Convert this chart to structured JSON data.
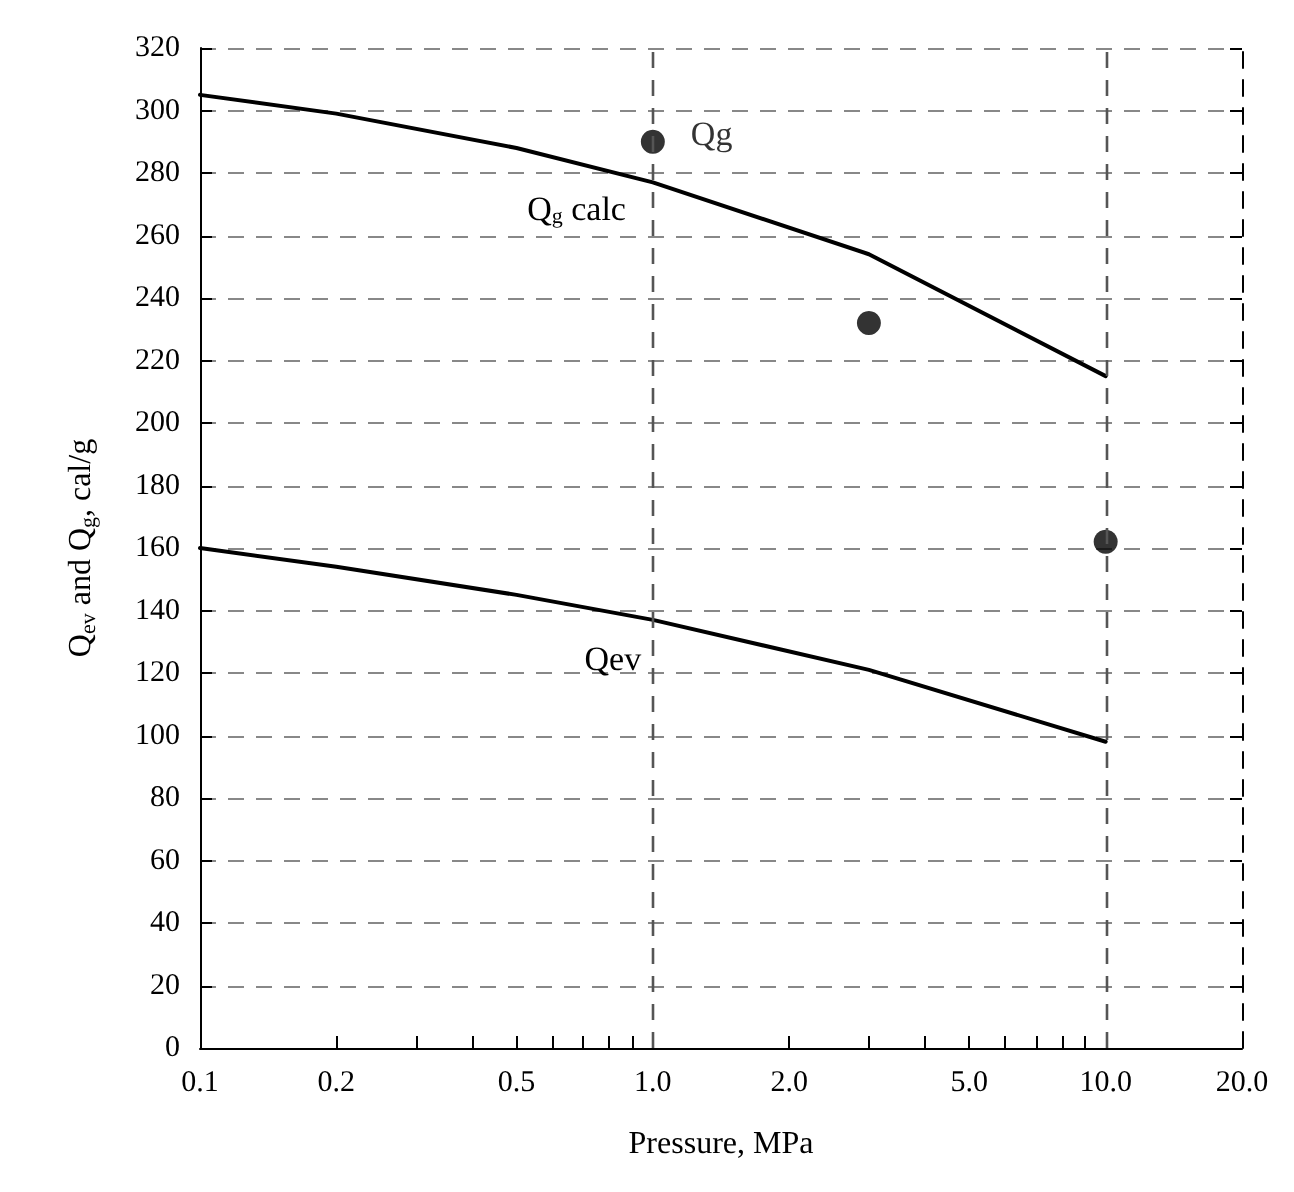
{
  "chart_data": {
    "type": "line",
    "xlabel": "Pressure, MPa",
    "ylabel": "Q$_{ev}$ and Q$_{g}$, cal/g",
    "log": "x",
    "grid": "y",
    "legend": false,
    "line_style": "solid",
    "marker": "none",
    "xlim": [
      0.1,
      20
    ],
    "ylim": [
      0,
      320
    ],
    "xticks": [
      {
        "value": 0.1,
        "label": "0.1"
      },
      {
        "value": 0.2,
        "label": "0.2"
      },
      {
        "value": 0.3,
        "label": null
      },
      {
        "value": 0.4,
        "label": null
      },
      {
        "value": 0.5,
        "label": "0.5"
      },
      {
        "value": 0.6,
        "label": null
      },
      {
        "value": 0.7,
        "label": null
      },
      {
        "value": 0.8,
        "label": null
      },
      {
        "value": 0.9,
        "label": null
      },
      {
        "value": 1,
        "label": "1.0"
      },
      {
        "value": 2,
        "label": "2.0"
      },
      {
        "value": 3,
        "label": null
      },
      {
        "value": 4,
        "label": null
      },
      {
        "value": 5,
        "label": "5.0"
      },
      {
        "value": 6,
        "label": null
      },
      {
        "value": 7,
        "label": null
      },
      {
        "value": 8,
        "label": null
      },
      {
        "value": 9,
        "label": null
      },
      {
        "value": 10,
        "label": "10.0"
      },
      {
        "value": 20,
        "label": "20.0"
      }
    ],
    "yticks": [
      0,
      20,
      40,
      60,
      80,
      100,
      120,
      140,
      160,
      180,
      200,
      220,
      240,
      260,
      280,
      300,
      320
    ],
    "ref_lines": [
      {
        "axis": "x",
        "value": 1,
        "line_style": "dashed"
      },
      {
        "axis": "x",
        "value": 10,
        "line_style": "dashed"
      }
    ],
    "series": [
      {
        "name": "Q$_{g}$ calc",
        "color": "#000000",
        "x": [
          0.1,
          0.2,
          0.5,
          1,
          3,
          10
        ],
        "values": [
          305,
          299,
          288,
          277,
          254,
          215
        ]
      },
      {
        "name": "Qev",
        "color": "#000000",
        "x": [
          0.1,
          0.2,
          0.5,
          1,
          3,
          10
        ],
        "values": [
          160,
          154,
          145,
          137,
          121,
          98
        ]
      },
      {
        "name": "Qg",
        "type": "scatter",
        "marker": "circle",
        "color": "#000000",
        "x": [
          1,
          3,
          10
        ],
        "values": [
          290,
          232,
          162
        ]
      }
    ]
  }
}
